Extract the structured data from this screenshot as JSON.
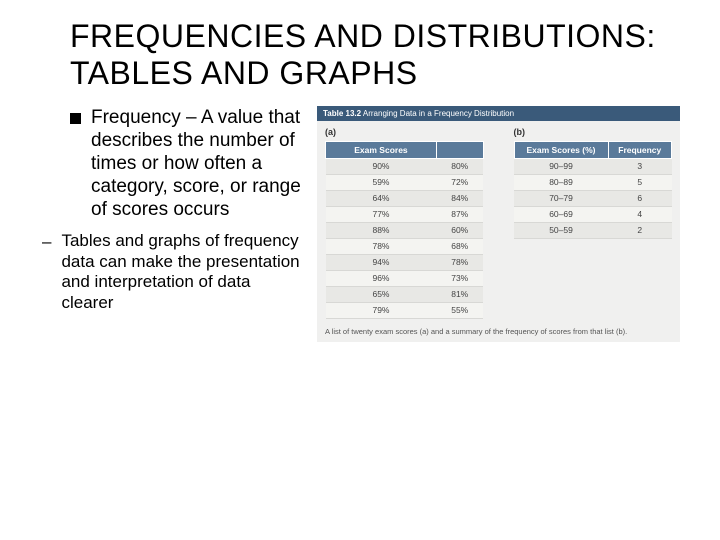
{
  "title": "FREQUENCIES AND DISTRIBUTIONS: TABLES AND GRAPHS",
  "bullet1": "Frequency – A value that describes the number of times or how often a category, score, or range of scores occurs",
  "bullet2": "Tables and graphs of frequency data can make the presentation and interpretation of data clearer",
  "figure": {
    "caption_prefix": "Table 13.2",
    "caption_text": "Arranging Data in a Frequency Distribution",
    "label_a": "(a)",
    "label_b": "(b)",
    "table_a": {
      "columns": [
        "Exam Scores",
        ""
      ],
      "rows": [
        [
          "90%",
          "80%"
        ],
        [
          "59%",
          "72%"
        ],
        [
          "64%",
          "84%"
        ],
        [
          "77%",
          "87%"
        ],
        [
          "88%",
          "60%"
        ],
        [
          "78%",
          "68%"
        ],
        [
          "94%",
          "78%"
        ],
        [
          "96%",
          "73%"
        ],
        [
          "65%",
          "81%"
        ],
        [
          "79%",
          "55%"
        ]
      ]
    },
    "table_b": {
      "columns": [
        "Exam Scores (%)",
        "Frequency"
      ],
      "rows": [
        [
          "90–99",
          "3"
        ],
        [
          "80–89",
          "5"
        ],
        [
          "70–79",
          "6"
        ],
        [
          "60–69",
          "4"
        ],
        [
          "50–59",
          "2"
        ]
      ]
    },
    "bottom_caption": "A list of twenty exam scores (a) and a summary of the frequency of scores from that list (b)."
  }
}
